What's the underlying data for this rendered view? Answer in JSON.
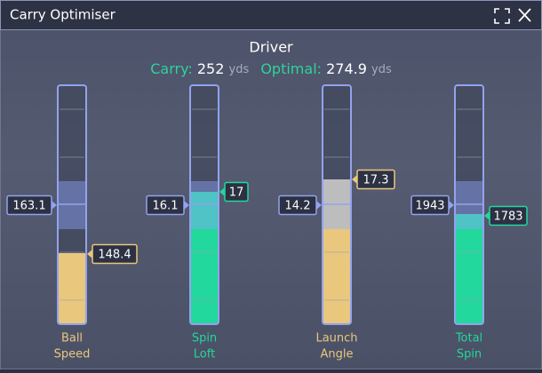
{
  "window": {
    "title": "Carry Optimiser"
  },
  "header": {
    "club": "Driver",
    "carry_label": "Carry:",
    "carry": 252,
    "carry_unit": "yds",
    "optimal_label": "Optimal:",
    "optimal": 274.9,
    "optimal_unit": "yds"
  },
  "gauges": [
    {
      "label": [
        "Ball",
        "Speed"
      ],
      "target": 163.1,
      "actual": 148.4
    },
    {
      "label": [
        "Spin",
        "Loft"
      ],
      "target": 16.1,
      "actual": 17
    },
    {
      "label": [
        "Launch",
        "Angle"
      ],
      "target": 14.2,
      "actual": 17.3
    },
    {
      "label": [
        "Total",
        "Spin"
      ],
      "target": 1943,
      "actual": 1783
    }
  ]
}
